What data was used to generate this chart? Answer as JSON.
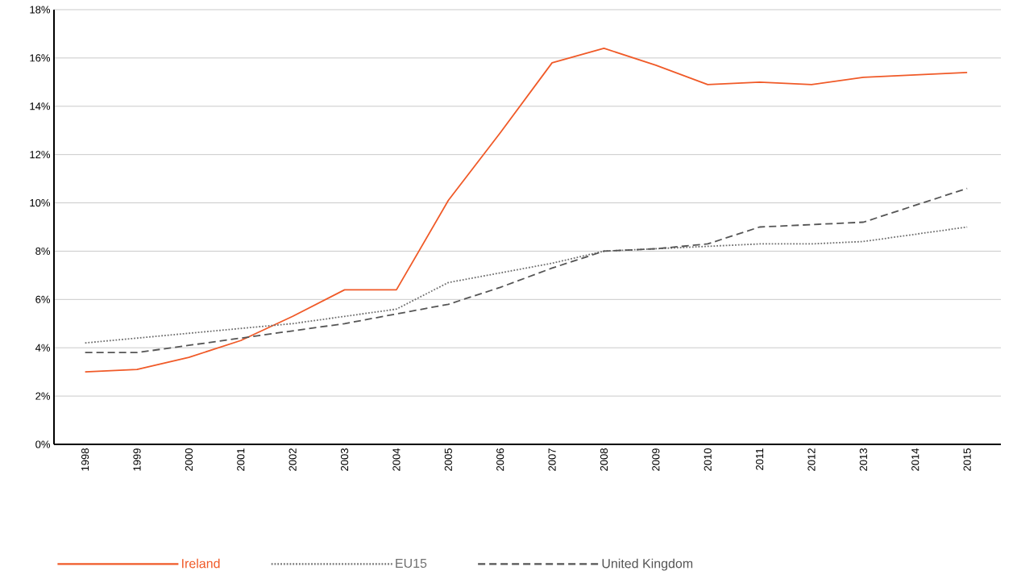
{
  "chart_data": {
    "type": "line",
    "categories": [
      "1998",
      "1999",
      "2000",
      "2001",
      "2002",
      "2003",
      "2004",
      "2005",
      "2006",
      "2007",
      "2008",
      "2009",
      "2010",
      "2011",
      "2012",
      "2013",
      "2014",
      "2015"
    ],
    "series": [
      {
        "name": "Ireland",
        "color": "#f05a28",
        "line_style": "solid",
        "values": [
          3.0,
          3.1,
          3.6,
          4.3,
          5.3,
          6.4,
          6.4,
          10.1,
          12.9,
          15.8,
          16.4,
          15.7,
          14.9,
          15.0,
          14.9,
          15.2,
          15.3,
          15.4
        ]
      },
      {
        "name": "EU15",
        "color": "#707070",
        "line_style": "dotted",
        "values": [
          4.2,
          4.4,
          4.6,
          4.8,
          5.0,
          5.3,
          5.6,
          6.7,
          7.1,
          7.5,
          8.0,
          8.1,
          8.2,
          8.3,
          8.3,
          8.4,
          8.7,
          9.0
        ]
      },
      {
        "name": "United Kingdom",
        "color": "#555555",
        "line_style": "dashed",
        "values": [
          3.8,
          3.8,
          4.1,
          4.4,
          4.7,
          5.0,
          5.4,
          5.8,
          6.5,
          7.3,
          8.0,
          8.1,
          8.3,
          9.0,
          9.1,
          9.2,
          9.9,
          10.6
        ]
      }
    ],
    "ylim": [
      0,
      18
    ],
    "yticks": [
      {
        "value": 0,
        "label": "0%"
      },
      {
        "value": 2,
        "label": "2%"
      },
      {
        "value": 4,
        "label": "4%"
      },
      {
        "value": 6,
        "label": "6%"
      },
      {
        "value": 8,
        "label": "8%"
      },
      {
        "value": 10,
        "label": "10%"
      },
      {
        "value": 12,
        "label": "12%"
      },
      {
        "value": 14,
        "label": "14%"
      },
      {
        "value": 16,
        "label": "16%"
      },
      {
        "value": 18,
        "label": "18%"
      }
    ],
    "grid": "y",
    "legend": "bottom",
    "marker": "none"
  }
}
